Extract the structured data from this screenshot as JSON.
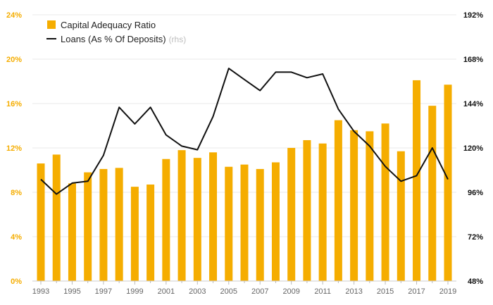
{
  "chart_data": {
    "type": "bar+line",
    "x": [
      1993,
      1994,
      1995,
      1996,
      1997,
      1998,
      1999,
      2000,
      2001,
      2002,
      2003,
      2004,
      2005,
      2006,
      2007,
      2008,
      2009,
      2010,
      2011,
      2012,
      2013,
      2014,
      2015,
      2016,
      2017,
      2018,
      2019
    ],
    "x_tick_labels": [
      "1993",
      "1995",
      "1997",
      "1999",
      "2001",
      "2003",
      "2005",
      "2007",
      "2009",
      "2011",
      "2013",
      "2015",
      "2017",
      "2019"
    ],
    "series": [
      {
        "name": "Capital Adequacy Ratio",
        "type": "bar",
        "axis": "left",
        "color": "#f5ad00",
        "values": [
          10.6,
          11.4,
          8.8,
          9.8,
          10.1,
          10.2,
          8.5,
          8.7,
          11.0,
          11.8,
          11.1,
          11.6,
          10.3,
          10.5,
          10.1,
          10.7,
          12.0,
          12.7,
          12.4,
          14.5,
          13.6,
          13.5,
          14.2,
          11.7,
          18.1,
          15.8,
          17.7
        ]
      },
      {
        "name": "Loans (As % Of Deposits)",
        "note": "(rhs)",
        "type": "line",
        "axis": "right",
        "color": "#111111",
        "values": [
          103,
          95,
          101,
          102,
          116,
          142,
          133,
          142,
          127,
          121,
          119,
          137,
          163,
          157,
          151,
          161,
          161,
          158,
          160,
          141,
          129,
          121,
          110,
          102,
          105,
          120,
          103
        ]
      }
    ],
    "y_left": {
      "min": 0,
      "max": 24,
      "ticks": [
        0,
        4,
        8,
        12,
        16,
        20,
        24
      ],
      "tick_labels": [
        "0%",
        "4%",
        "8%",
        "12%",
        "16%",
        "20%",
        "24%"
      ]
    },
    "y_right": {
      "min": 48,
      "max": 192,
      "ticks": [
        48,
        72,
        96,
        120,
        144,
        168,
        192
      ],
      "tick_labels": [
        "48%",
        "72%",
        "96%",
        "120%",
        "144%",
        "168%",
        "192%"
      ]
    },
    "legend_position": "top-left",
    "grid": true
  }
}
